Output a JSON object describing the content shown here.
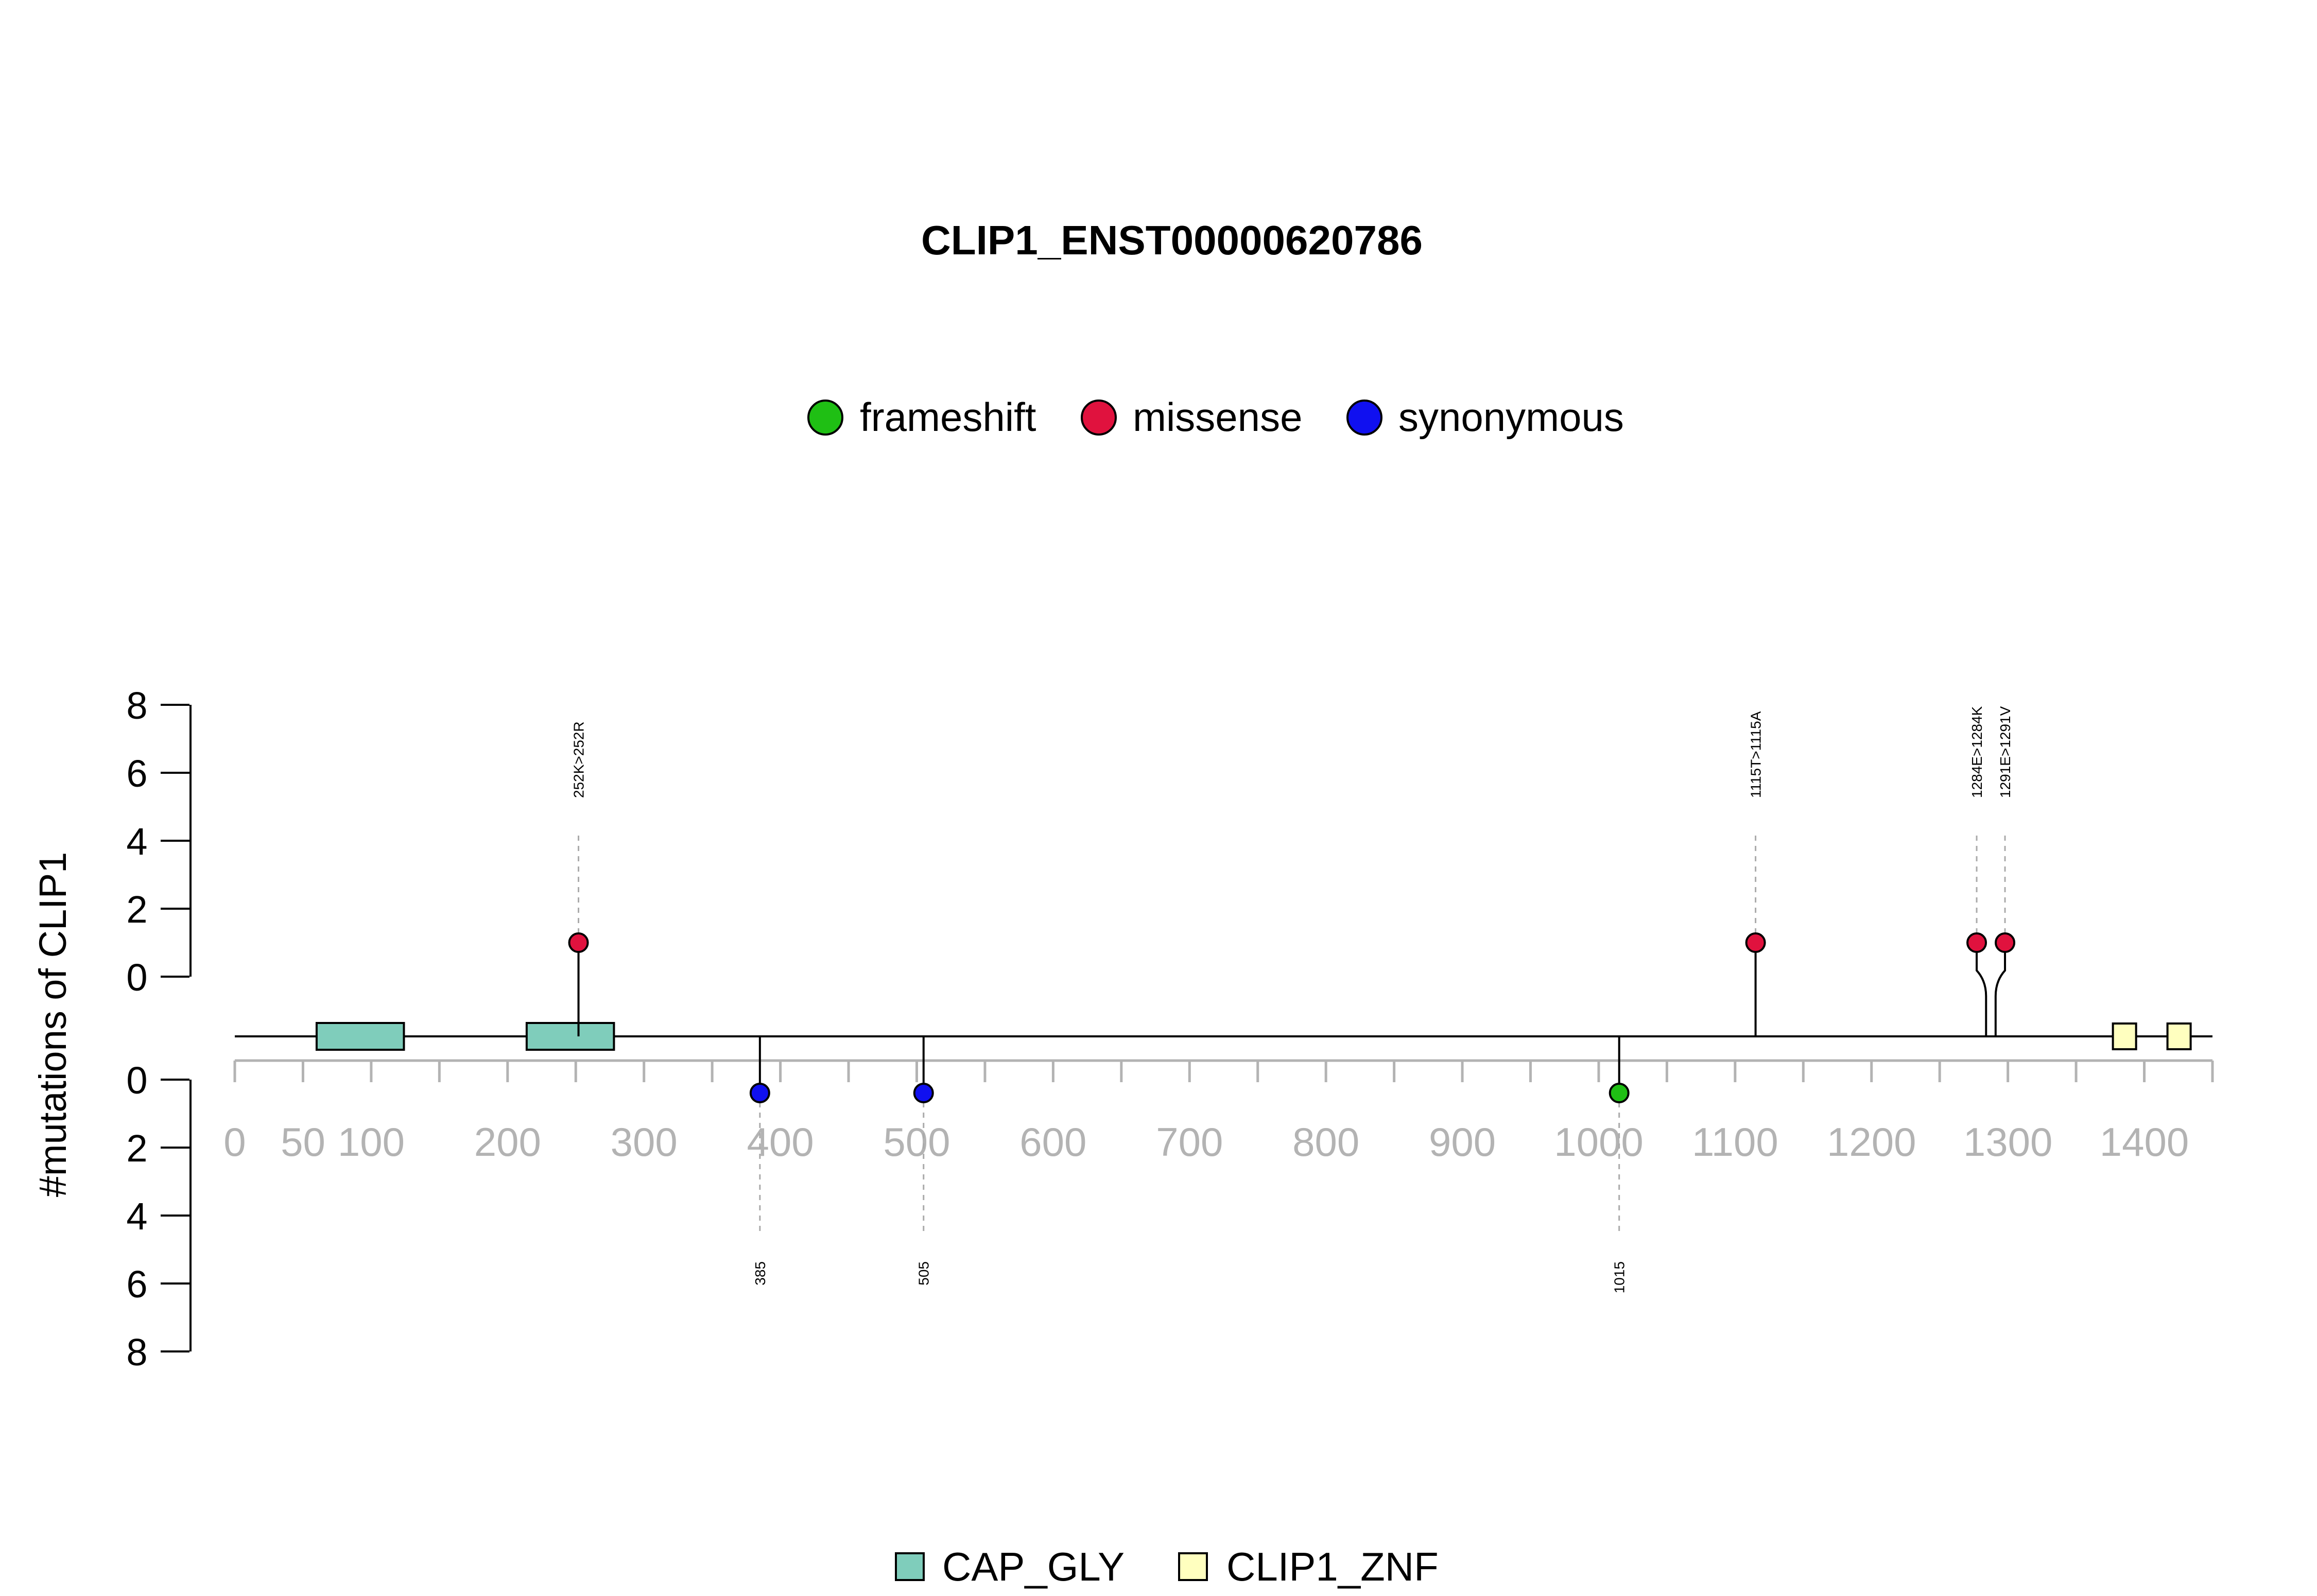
{
  "chart_data": {
    "type": "lollipop",
    "title": "CLIP1_ENST00000620786",
    "ylabel": "#mutations of CLIP1",
    "xlim": [
      0,
      1450
    ],
    "x_ticks": [
      0,
      50,
      100,
      200,
      300,
      400,
      500,
      600,
      700,
      800,
      900,
      1000,
      1100,
      1200,
      1300,
      1400
    ],
    "x_minor_ticks": [
      0,
      50,
      100,
      150,
      200,
      250,
      300,
      350,
      400,
      450,
      500,
      550,
      600,
      650,
      700,
      750,
      800,
      850,
      900,
      950,
      1000,
      1050,
      1100,
      1150,
      1200,
      1250,
      1300,
      1350,
      1400,
      1450
    ],
    "y_ticks": [
      0,
      2,
      4,
      6,
      8
    ],
    "ylim": [
      0,
      8
    ],
    "legend": {
      "position": "top-center",
      "entries": [
        {
          "name": "frameshift",
          "color": "#1fbf14"
        },
        {
          "name": "missense",
          "color": "#e0123e"
        },
        {
          "name": "synonymous",
          "color": "#1010f0"
        }
      ]
    },
    "domain_legend": {
      "position": "bottom-center",
      "entries": [
        {
          "name": "CAP_GLY",
          "color": "#7fcdbb"
        },
        {
          "name": "CLIP1_ZNF",
          "color": "#ffffbf"
        }
      ]
    },
    "domains": [
      {
        "name": "CAP_GLY",
        "start": 60,
        "end": 124
      },
      {
        "name": "CAP_GLY",
        "start": 214,
        "end": 278
      },
      {
        "name": "CLIP1_ZNF",
        "start": 1377,
        "end": 1394
      },
      {
        "name": "CLIP1_ZNF",
        "start": 1417,
        "end": 1434
      }
    ],
    "mutations_above": [
      {
        "position": 252,
        "count": 1,
        "type": "missense",
        "label": "252K>252R"
      },
      {
        "position": 1115,
        "count": 1,
        "type": "missense",
        "label": "1115T>1115A"
      },
      {
        "position": 1284,
        "count": 1,
        "type": "missense",
        "label": "1284E>1284K"
      },
      {
        "position": 1291,
        "count": 1,
        "type": "missense",
        "label": "1291E>1291V"
      }
    ],
    "mutations_below": [
      {
        "position": 385,
        "count": 1,
        "type": "synonymous",
        "label": "385"
      },
      {
        "position": 505,
        "count": 1,
        "type": "synonymous",
        "label": "505"
      },
      {
        "position": 1015,
        "count": 1,
        "type": "frameshift",
        "label": "1015"
      }
    ]
  }
}
